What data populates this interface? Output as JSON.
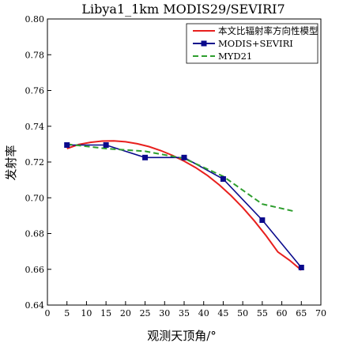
{
  "chart_data": {
    "type": "line",
    "title": "Libya1_1km MODIS29/SEVIRI7",
    "xlabel": "观测天顶角/°",
    "ylabel": "发射率",
    "xlim": [
      0,
      70
    ],
    "ylim": [
      0.64,
      0.8
    ],
    "x_ticks": [
      "0",
      "5",
      "10",
      "15",
      "20",
      "25",
      "30",
      "35",
      "40",
      "45",
      "50",
      "55",
      "60",
      "65",
      "70"
    ],
    "y_ticks": [
      "0.64",
      "0.66",
      "0.68",
      "0.70",
      "0.72",
      "0.74",
      "0.76",
      "0.78",
      "0.80"
    ],
    "grid": false,
    "legend_position": "top-right",
    "series": [
      {
        "name": "本文比辐射率方向性模型",
        "style": "line",
        "color": "#e8201e",
        "x": [
          5,
          8,
          11,
          14,
          17,
          20,
          23,
          26,
          29,
          32,
          35,
          38,
          41,
          44,
          47,
          50,
          53,
          56,
          59,
          62,
          65
        ],
        "y": [
          0.7275,
          0.7298,
          0.731,
          0.7317,
          0.7318,
          0.7313,
          0.7302,
          0.7286,
          0.7264,
          0.7237,
          0.7205,
          0.7168,
          0.7124,
          0.7072,
          0.7012,
          0.6945,
          0.687,
          0.6787,
          0.6697,
          0.665,
          0.6595
        ]
      },
      {
        "name": "MODIS+SEVIRI",
        "style": "line-marker",
        "color": "#0a0a8c",
        "x": [
          5,
          15,
          25,
          35,
          45,
          55,
          65
        ],
        "y": [
          0.7295,
          0.7295,
          0.7225,
          0.7225,
          0.7105,
          0.6875,
          0.661
        ]
      },
      {
        "name": "MYD21",
        "style": "dashed",
        "color": "#2e9e2e",
        "x": [
          5,
          15,
          25,
          35,
          45,
          55,
          63
        ],
        "y": [
          0.73,
          0.7275,
          0.726,
          0.722,
          0.712,
          0.6965,
          0.6925
        ]
      }
    ]
  }
}
